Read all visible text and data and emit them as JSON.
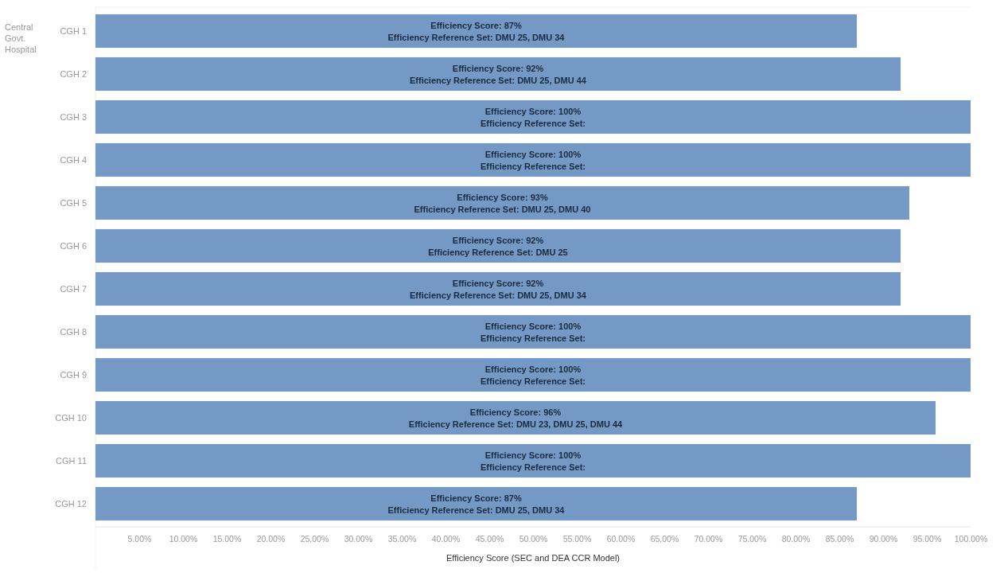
{
  "chart_data": {
    "type": "bar",
    "orientation": "horizontal",
    "ylabel": "Central Govt. Hospital",
    "xlabel": "Efficiency Score (SEC and DEA  CCR Model)",
    "categories": [
      "CGH 1",
      "CGH 2",
      "CGH 3",
      "CGH 4",
      "CGH 5",
      "CGH 6",
      "CGH 7",
      "CGH 8",
      "CGH 9",
      "CGH 10",
      "CGH 11",
      "CGH 12"
    ],
    "values": [
      87,
      92,
      100,
      100,
      93,
      92,
      92,
      100,
      100,
      96,
      100,
      87
    ],
    "color": "#7399c4",
    "value_labels": [
      "Efficiency Score: 87%\nEfficiency Reference Set: DMU 25, DMU 34",
      "Efficiency Score: 92%\nEfficiency Reference Set: DMU 25, DMU 44",
      "Efficiency Score: 100%\nEfficiency Reference Set:",
      "Efficiency Score: 100%\nEfficiency Reference Set:",
      "Efficiency Score: 93%\nEfficiency Reference Set: DMU 25, DMU 40",
      "Efficiency Score: 92%\nEfficiency Reference Set: DMU 25",
      "Efficiency Score: 92%\nEfficiency Reference Set: DMU 25, DMU 34",
      "Efficiency Score: 100%\nEfficiency Reference Set:",
      "Efficiency Score: 100%\nEfficiency Reference Set:",
      "Efficiency Score: 96%\nEfficiency Reference Set: DMU 23, DMU 25, DMU 44",
      "Efficiency Score: 100%\nEfficiency Reference Set:",
      "Efficiency Score: 87%\nEfficiency Reference Set: DMU 25, DMU 34"
    ],
    "xlim": [
      0,
      100
    ],
    "xticks": [
      {
        "value": 5,
        "label": "5.00%"
      },
      {
        "value": 10,
        "label": "10.00%"
      },
      {
        "value": 15,
        "label": "15.00%"
      },
      {
        "value": 20,
        "label": "20.00%"
      },
      {
        "value": 25,
        "label": "25.00%"
      },
      {
        "value": 30,
        "label": "30.00%"
      },
      {
        "value": 35,
        "label": "35.00%"
      },
      {
        "value": 40,
        "label": "40.00%"
      },
      {
        "value": 45,
        "label": "45.00%"
      },
      {
        "value": 50,
        "label": "50.00%"
      },
      {
        "value": 55,
        "label": "55.00%"
      },
      {
        "value": 60,
        "label": "60.00%"
      },
      {
        "value": 65,
        "label": "65.00%"
      },
      {
        "value": 70,
        "label": "70.00%"
      },
      {
        "value": 75,
        "label": "75.00%"
      },
      {
        "value": 80,
        "label": "80.00%"
      },
      {
        "value": 85,
        "label": "85.00%"
      },
      {
        "value": 90,
        "label": "90.00%"
      },
      {
        "value": 95,
        "label": "95.00%"
      },
      {
        "value": 100,
        "label": "100.00%"
      }
    ]
  }
}
